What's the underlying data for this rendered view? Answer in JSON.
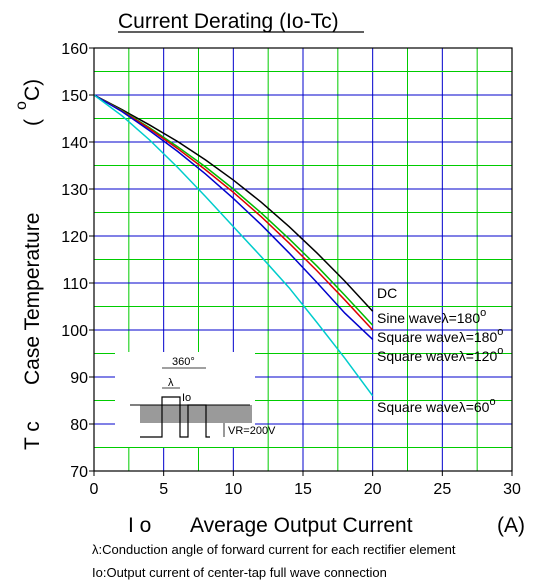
{
  "chart_data": {
    "type": "line",
    "title": "Current Derating  (Io-Tc)",
    "xlabel": {
      "symbol": "I o",
      "text": "Average Output Current",
      "unit": "(A)"
    },
    "ylabel": {
      "symbol": "T c",
      "text": "Case Temperature",
      "unit": "(",
      "unit_degree": "o",
      "unit_c": "C)"
    },
    "xlim": [
      0,
      30
    ],
    "ylim": [
      70,
      160
    ],
    "x_ticks": [
      "0",
      "5",
      "10",
      "15",
      "20",
      "25",
      "30"
    ],
    "y_ticks": [
      "70",
      "80",
      "90",
      "100",
      "110",
      "120",
      "130",
      "140",
      "150",
      "160"
    ],
    "grid": true,
    "grid_colors": {
      "major": "#0000cc",
      "minor": "#00cc00"
    },
    "series": [
      {
        "name": "DC",
        "label": "DC",
        "color": "#000000",
        "x": [
          0,
          2,
          4,
          6,
          8,
          10,
          12,
          14,
          16,
          18,
          20
        ],
        "y": [
          150,
          146.9,
          143.6,
          140.1,
          136.2,
          131.9,
          127.2,
          122.0,
          116.4,
          110.4,
          104.0
        ]
      },
      {
        "name": "Sine wave",
        "label": "Sine wave",
        "lambda": "180",
        "color": "#00bb00",
        "x": [
          0,
          2,
          4,
          6,
          8,
          10,
          12,
          14,
          16,
          18,
          20
        ],
        "y": [
          150,
          146.7,
          143.0,
          139.0,
          134.7,
          130.0,
          124.9,
          119.4,
          113.6,
          107.4,
          101.0
        ]
      },
      {
        "name": "Square wave",
        "label": "Square wave",
        "lambda": "180",
        "color": "#dd0000",
        "x": [
          0,
          2,
          4,
          6,
          8,
          10,
          12,
          14,
          16,
          18,
          20
        ],
        "y": [
          150,
          146.6,
          142.8,
          138.6,
          134.1,
          129.3,
          124.1,
          118.5,
          112.6,
          106.4,
          100.0
        ]
      },
      {
        "name": "Square wave",
        "label": "Square wave",
        "lambda": "120",
        "color": "#0000cc",
        "x": [
          0,
          2,
          4,
          6,
          8,
          10,
          12,
          14,
          16,
          18,
          20
        ],
        "y": [
          150,
          146.5,
          142.4,
          138.0,
          133.2,
          128.0,
          122.4,
          116.4,
          110.1,
          103.6,
          98.0
        ]
      },
      {
        "name": "Square wave",
        "label": "Square wave",
        "lambda": "60",
        "color": "#00cccc",
        "x": [
          0,
          2,
          4,
          6,
          8,
          10,
          12,
          14,
          16,
          18,
          20
        ],
        "y": [
          150,
          145.6,
          140.4,
          134.6,
          128.4,
          122.0,
          115.6,
          109.0,
          101.6,
          94.0,
          86.0
        ]
      }
    ],
    "legend_lambda_symbol": "λ=",
    "legend_degree": "o",
    "inset": {
      "period_label": "360°",
      "lambda_label": "λ",
      "io_label": "Io",
      "vr_label": "VR=200V"
    },
    "notes": [
      "λ:Conduction angle of forward current for each rectifier element",
      "Io:Output current of center-tap full wave connection"
    ]
  }
}
